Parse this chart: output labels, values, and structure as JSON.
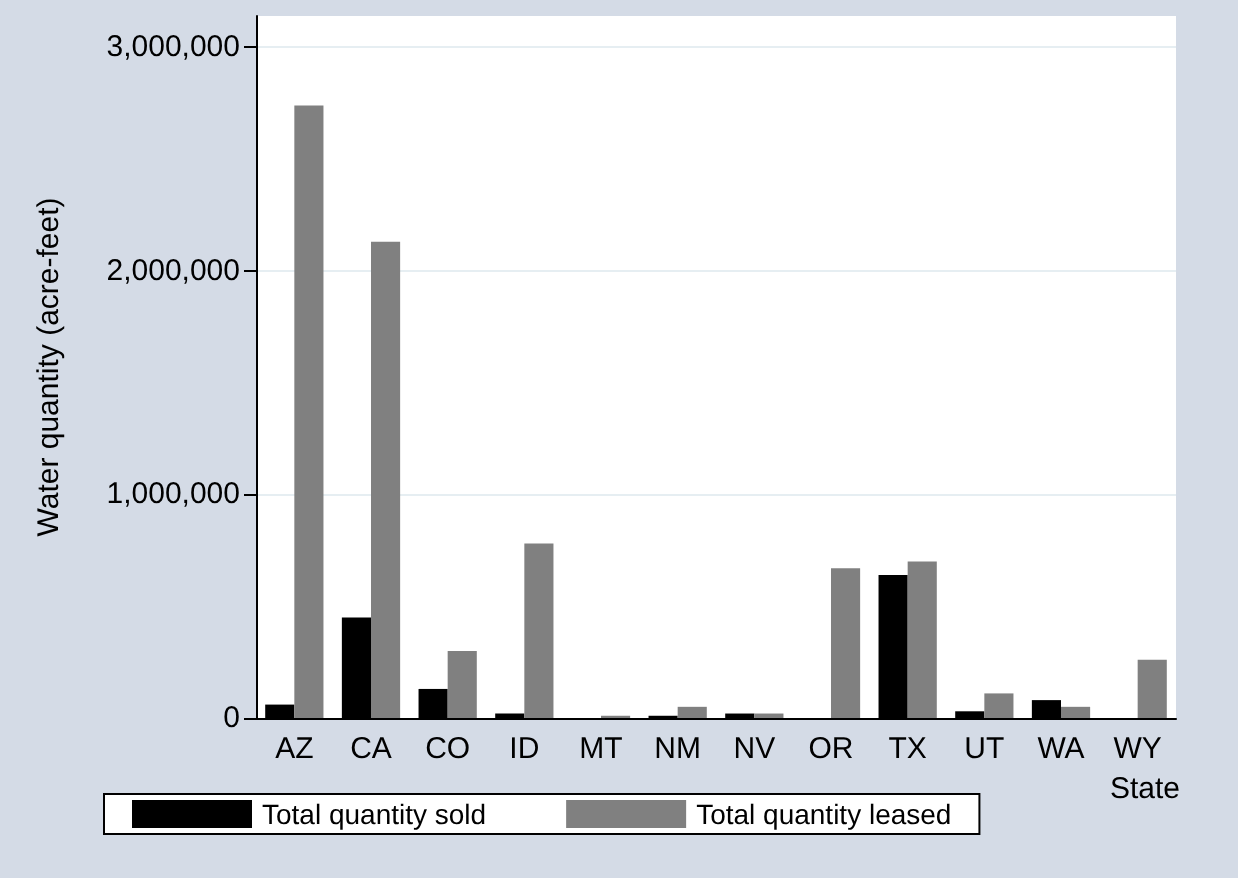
{
  "chart_data": {
    "type": "bar",
    "xlabel": "State",
    "ylabel": "Water quantity (acre-feet)",
    "categories": [
      "AZ",
      "CA",
      "CO",
      "ID",
      "MT",
      "NM",
      "NV",
      "OR",
      "TX",
      "UT",
      "WA",
      "WY"
    ],
    "series": [
      {
        "name": "Total quantity sold",
        "color": "#000000",
        "values": [
          60000,
          450000,
          130000,
          20000,
          0,
          10000,
          20000,
          0,
          640000,
          30000,
          80000,
          0
        ]
      },
      {
        "name": "Total quantity leased",
        "color": "#808080",
        "values": [
          2740000,
          2130000,
          300000,
          780000,
          10000,
          50000,
          20000,
          670000,
          700000,
          110000,
          50000,
          260000
        ]
      }
    ],
    "ylim": [
      0,
      3140000
    ],
    "yticks": [
      0,
      {
        "value": 1000000,
        "label": "1,000,000"
      },
      {
        "value": 2000000,
        "label": "2,000,000"
      },
      {
        "value": 3000000,
        "label": "3,000,000"
      }
    ],
    "grid": "y",
    "legend": "bottom"
  }
}
